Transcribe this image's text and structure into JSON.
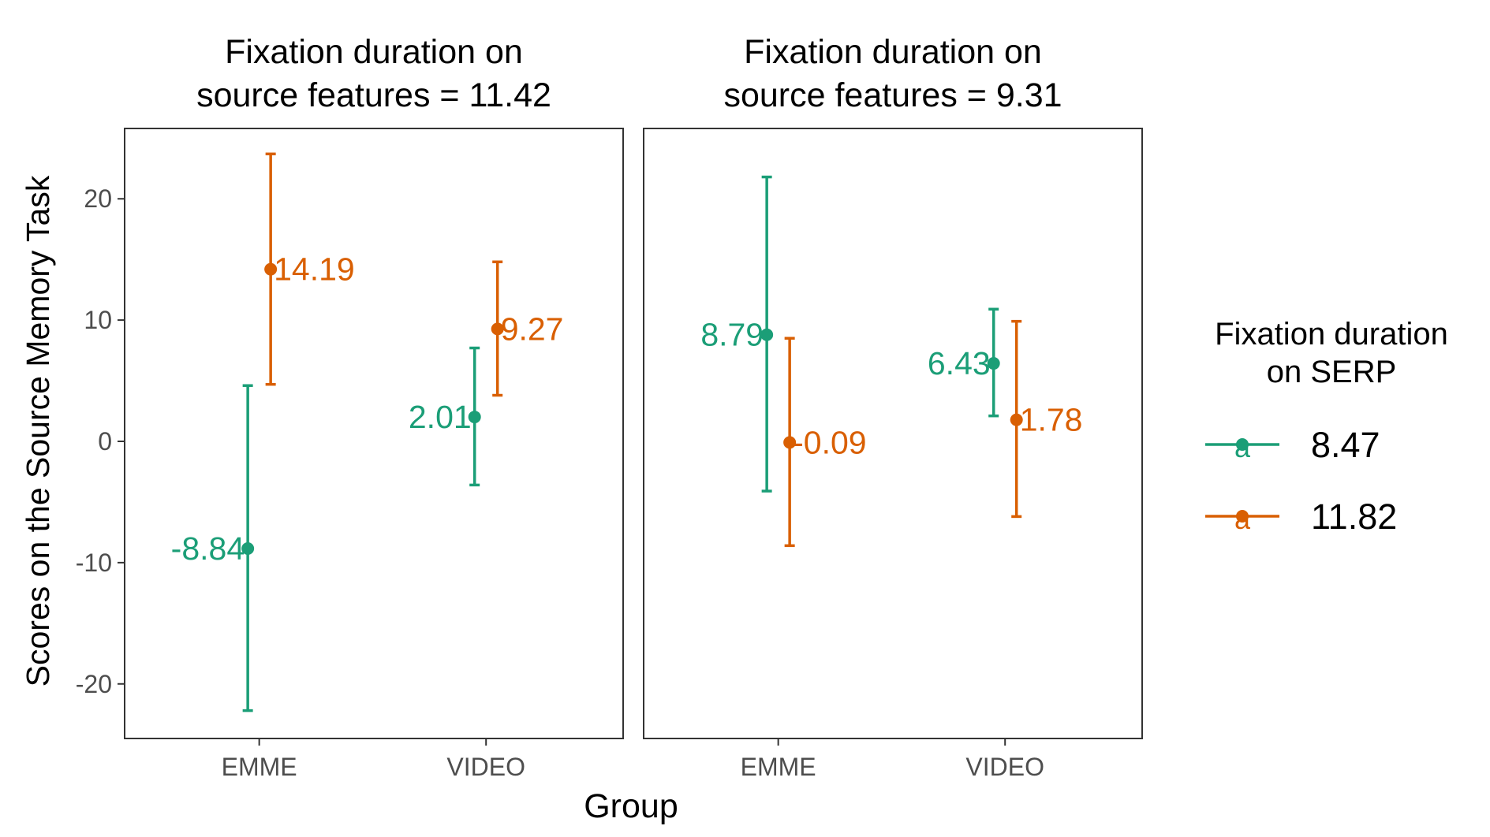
{
  "chart_data": {
    "type": "scatter",
    "xlabel": "Group",
    "ylabel": "Scores on the Source Memory Task",
    "ylim": [
      -24.5,
      25.8
    ],
    "yticks": [
      -20,
      -10,
      0,
      10,
      20
    ],
    "categories": [
      "EMME",
      "VIDEO"
    ],
    "legend": {
      "title_line1": "Fixation duration",
      "title_line2": "on SERP",
      "placement": "right",
      "glyph": "a"
    },
    "colors": {
      "8.47": "#1b9e77",
      "11.82": "#d95f02"
    },
    "series_levels": [
      "8.47",
      "11.82"
    ],
    "panels": [
      {
        "title_line1": "Fixation duration on",
        "title_line2": "source features = 11.42",
        "points": [
          {
            "series": "8.47",
            "category": "EMME",
            "y": -8.84,
            "lo": -22.2,
            "hi": 4.6,
            "label": "-8.84"
          },
          {
            "series": "11.82",
            "category": "EMME",
            "y": 14.19,
            "lo": 4.7,
            "hi": 23.7,
            "label": "14.19"
          },
          {
            "series": "8.47",
            "category": "VIDEO",
            "y": 2.01,
            "lo": -3.6,
            "hi": 7.7,
            "label": "2.01"
          },
          {
            "series": "11.82",
            "category": "VIDEO",
            "y": 9.27,
            "lo": 3.8,
            "hi": 14.8,
            "label": "9.27"
          }
        ]
      },
      {
        "title_line1": "Fixation duration on",
        "title_line2": "source features = 9.31",
        "points": [
          {
            "series": "8.47",
            "category": "EMME",
            "y": 8.79,
            "lo": -4.1,
            "hi": 21.8,
            "label": "8.79"
          },
          {
            "series": "11.82",
            "category": "EMME",
            "y": -0.09,
            "lo": -8.6,
            "hi": 8.5,
            "label": "-0.09"
          },
          {
            "series": "8.47",
            "category": "VIDEO",
            "y": 6.43,
            "lo": 2.1,
            "hi": 10.9,
            "label": "6.43"
          },
          {
            "series": "11.82",
            "category": "VIDEO",
            "y": 1.78,
            "lo": -6.2,
            "hi": 9.9,
            "label": "1.78"
          }
        ]
      }
    ]
  }
}
